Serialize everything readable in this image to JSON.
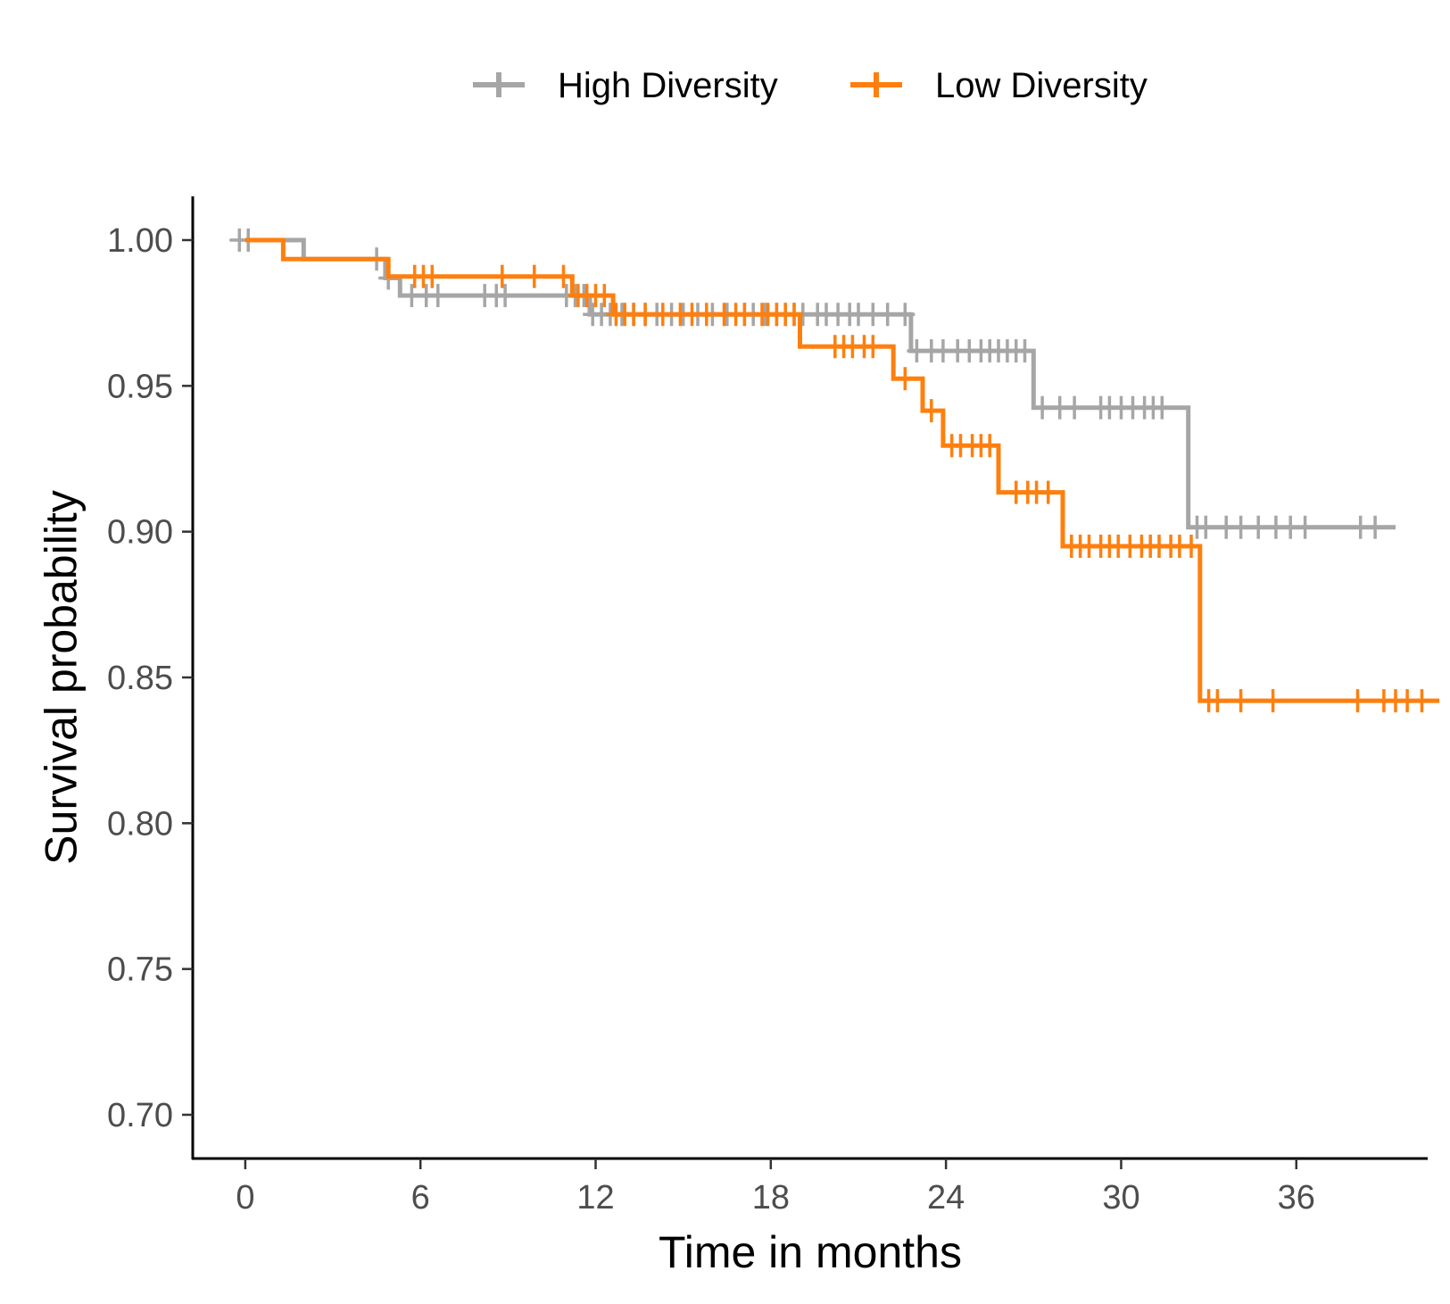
{
  "chart_data": {
    "type": "line",
    "subtype": "kaplan-meier-step",
    "title": "",
    "xlabel": "Time in months",
    "ylabel": "Survival probability",
    "xlim": [
      -1.8,
      40.5
    ],
    "ylim": [
      0.685,
      1.015
    ],
    "x_ticks": [
      0,
      6,
      12,
      18,
      24,
      30,
      36
    ],
    "x_tick_labels": [
      "0",
      "6",
      "12",
      "18",
      "24",
      "30",
      "36"
    ],
    "y_ticks": [
      0.7,
      0.75,
      0.8,
      0.85,
      0.9,
      0.95,
      1.0
    ],
    "y_tick_labels": [
      "0.70",
      "0.75",
      "0.80",
      "0.85",
      "0.90",
      "0.95",
      "1.00"
    ],
    "grid": false,
    "legend_position": "top",
    "series": [
      {
        "name": "High Diversity",
        "color": "#a6a6a6",
        "steps": [
          [
            0,
            1.0
          ],
          [
            2.0,
            1.0
          ],
          [
            2.0,
            0.9935
          ],
          [
            4.8,
            0.9935
          ],
          [
            4.8,
            0.987
          ],
          [
            5.3,
            0.987
          ],
          [
            5.3,
            0.981
          ],
          [
            11.8,
            0.981
          ],
          [
            11.8,
            0.9745
          ],
          [
            12.0,
            0.9745
          ],
          [
            12.0,
            0.9745
          ],
          [
            22.8,
            0.9745
          ],
          [
            22.8,
            0.962
          ],
          [
            27.0,
            0.962
          ],
          [
            27.0,
            0.9425
          ],
          [
            32.3,
            0.9425
          ],
          [
            32.3,
            0.9015
          ],
          [
            39.4,
            0.9015
          ]
        ],
        "censor_times": [
          -0.2,
          0.1,
          4.5,
          4.9,
          5.7,
          6.2,
          6.6,
          8.2,
          8.6,
          8.9,
          11.0,
          11.3,
          11.6,
          11.9,
          12.2,
          12.5,
          12.9,
          13.3,
          13.7,
          14.1,
          14.6,
          15.0,
          15.5,
          16.0,
          16.5,
          17.1,
          17.4,
          17.8,
          18.2,
          18.5,
          18.8,
          19.1,
          19.6,
          19.9,
          20.3,
          20.7,
          21.0,
          21.5,
          22.0,
          22.6,
          23.0,
          23.5,
          23.9,
          24.4,
          24.8,
          25.2,
          25.5,
          25.8,
          26.1,
          26.4,
          26.7,
          27.3,
          27.9,
          28.4,
          29.3,
          29.6,
          30.0,
          30.4,
          30.8,
          31.1,
          31.4,
          32.6,
          32.9,
          33.6,
          34.1,
          34.7,
          35.3,
          35.8,
          36.3,
          38.2,
          38.7
        ]
      },
      {
        "name": "Low Diversity",
        "color": "#ff7f0e",
        "steps": [
          [
            0,
            1.0
          ],
          [
            1.3,
            1.0
          ],
          [
            1.3,
            0.9935
          ],
          [
            4.9,
            0.9935
          ],
          [
            4.9,
            0.9875
          ],
          [
            11.2,
            0.9875
          ],
          [
            11.2,
            0.981
          ],
          [
            12.6,
            0.981
          ],
          [
            12.6,
            0.9745
          ],
          [
            19.0,
            0.9745
          ],
          [
            19.0,
            0.9635
          ],
          [
            22.2,
            0.9635
          ],
          [
            22.2,
            0.9525
          ],
          [
            23.2,
            0.9525
          ],
          [
            23.2,
            0.9415
          ],
          [
            23.9,
            0.9415
          ],
          [
            23.9,
            0.9295
          ],
          [
            25.8,
            0.9295
          ],
          [
            25.8,
            0.9135
          ],
          [
            28.0,
            0.9135
          ],
          [
            28.0,
            0.895
          ],
          [
            32.7,
            0.895
          ],
          [
            32.7,
            0.842
          ],
          [
            40.9,
            0.842
          ]
        ],
        "censor_times": [
          5.8,
          6.1,
          6.4,
          8.8,
          9.9,
          10.9,
          11.4,
          11.7,
          12.0,
          12.3,
          12.7,
          13.0,
          13.3,
          13.7,
          14.3,
          14.9,
          15.3,
          15.8,
          16.4,
          16.8,
          17.1,
          17.7,
          17.9,
          18.2,
          18.5,
          18.8,
          20.2,
          20.5,
          20.8,
          21.2,
          21.5,
          22.6,
          23.5,
          24.2,
          24.5,
          24.9,
          25.2,
          25.5,
          26.4,
          26.8,
          27.1,
          27.5,
          28.3,
          28.6,
          28.9,
          29.3,
          29.6,
          29.9,
          30.3,
          30.7,
          31.0,
          31.3,
          31.7,
          32.0,
          32.4,
          33.0,
          33.3,
          34.1,
          35.2,
          38.1,
          39.0,
          39.4,
          39.8,
          40.3
        ]
      }
    ]
  }
}
